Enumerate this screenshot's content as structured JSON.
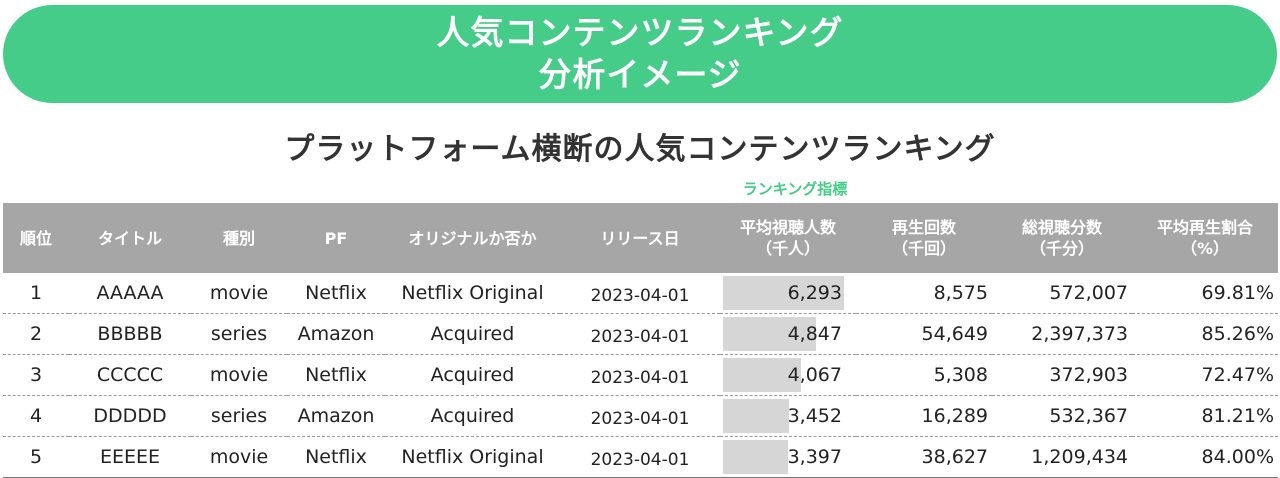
{
  "banner": {
    "line1": "人気コンテンツランキング",
    "line2": "分析イメージ"
  },
  "subtitle": "プラットフォーム横断の人気コンテンツランキング",
  "metric_label": "ランキング指標",
  "colors": {
    "accent": "#45cc88",
    "header_bg": "#a6a6a6",
    "bar": "#d6d6d6"
  },
  "table": {
    "headers": [
      {
        "line1": "順位",
        "line2": ""
      },
      {
        "line1": "タイトル",
        "line2": ""
      },
      {
        "line1": "種別",
        "line2": ""
      },
      {
        "line1": "PF",
        "line2": ""
      },
      {
        "line1": "オリジナルか否か",
        "line2": ""
      },
      {
        "line1": "リリース日",
        "line2": ""
      },
      {
        "line1": "平均視聴人数",
        "line2": "（千人）"
      },
      {
        "line1": "再生回数",
        "line2": "（千回）"
      },
      {
        "line1": "総視聴分数",
        "line2": "（千分）"
      },
      {
        "line1": "平均再生割合",
        "line2": "（%）"
      }
    ],
    "rows": [
      {
        "rank": "1",
        "title": "AAAAA",
        "type": "movie",
        "pf": "Netflix",
        "original": "Netflix Original",
        "release": "2023-04-01",
        "avg_viewers": "6,293",
        "avg_viewers_value": 6293,
        "plays": "8,575",
        "total_minutes": "572,007",
        "avg_ratio": "69.81%"
      },
      {
        "rank": "2",
        "title": "BBBBB",
        "type": "series",
        "pf": "Amazon",
        "original": "Acquired",
        "release": "2023-04-01",
        "avg_viewers": "4,847",
        "avg_viewers_value": 4847,
        "plays": "54,649",
        "total_minutes": "2,397,373",
        "avg_ratio": "85.26%"
      },
      {
        "rank": "3",
        "title": "CCCCC",
        "type": "movie",
        "pf": "Netflix",
        "original": "Acquired",
        "release": "2023-04-01",
        "avg_viewers": "4,067",
        "avg_viewers_value": 4067,
        "plays": "5,308",
        "total_minutes": "372,903",
        "avg_ratio": "72.47%"
      },
      {
        "rank": "4",
        "title": "DDDDD",
        "type": "series",
        "pf": "Amazon",
        "original": "Acquired",
        "release": "2023-04-01",
        "avg_viewers": "3,452",
        "avg_viewers_value": 3452,
        "plays": "16,289",
        "total_minutes": "532,367",
        "avg_ratio": "81.21%"
      },
      {
        "rank": "5",
        "title": "EEEEE",
        "type": "movie",
        "pf": "Netflix",
        "original": "Netflix Original",
        "release": "2023-04-01",
        "avg_viewers": "3,397",
        "avg_viewers_value": 3397,
        "plays": "38,627",
        "total_minutes": "1,209,434",
        "avg_ratio": "84.00%"
      }
    ]
  }
}
